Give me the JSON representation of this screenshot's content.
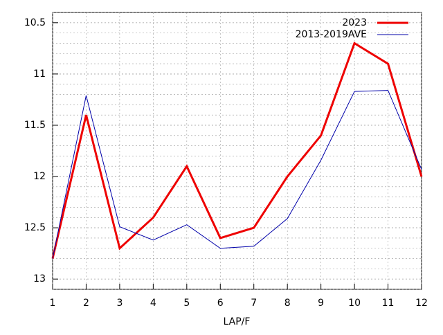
{
  "chart_data": {
    "type": "line",
    "xlabel": "LAP/F",
    "x": [
      1,
      2,
      3,
      4,
      5,
      6,
      7,
      8,
      9,
      10,
      11,
      12
    ],
    "series": [
      {
        "name": "2023",
        "color": "#ee0000",
        "width": 3,
        "values": [
          12.8,
          11.4,
          12.7,
          12.4,
          11.9,
          12.6,
          12.5,
          12.0,
          11.6,
          10.7,
          10.9,
          12.0
        ]
      },
      {
        "name": "2013-2019AVE",
        "color": "#0000aa",
        "width": 1,
        "values": [
          12.8,
          11.21,
          12.49,
          12.62,
          12.47,
          12.7,
          12.68,
          12.41,
          11.84,
          11.17,
          11.16,
          11.93
        ]
      }
    ],
    "xlim": [
      1,
      12
    ],
    "xticks": [
      1,
      2,
      3,
      4,
      5,
      6,
      7,
      8,
      9,
      10,
      11,
      12
    ],
    "ylim": [
      13.1,
      10.4
    ],
    "yticks": [
      10.5,
      11,
      11.5,
      12,
      12.5,
      13
    ],
    "minor_ystep": 0.1,
    "grid": true,
    "legend": "top-right"
  }
}
